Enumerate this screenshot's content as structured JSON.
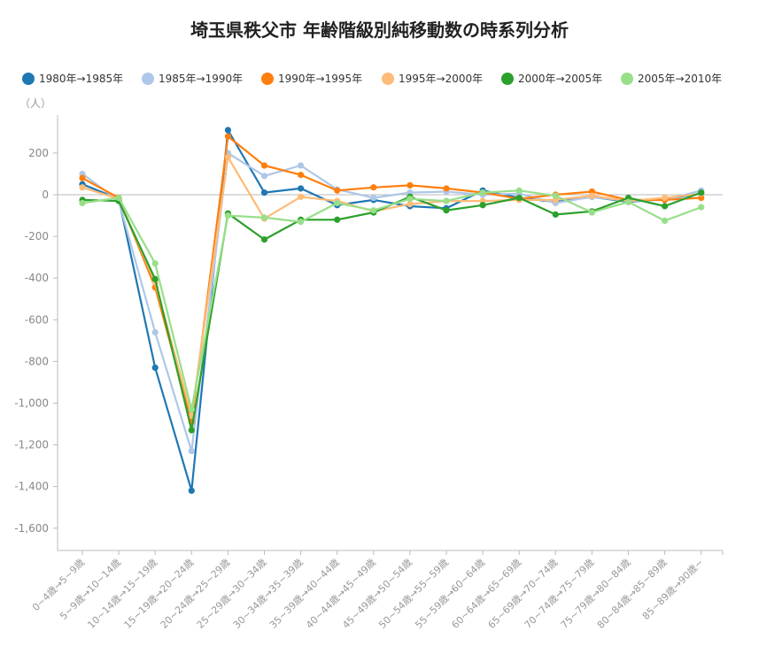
{
  "chart_data": {
    "type": "line",
    "title": "埼玉県秩父市 年齢階級別純移動数の時系列分析",
    "ylabel": "（人）",
    "ylim": [
      -1700,
      400
    ],
    "yticks": [
      200,
      0,
      -200,
      -400,
      -600,
      -800,
      -1000,
      -1200,
      -1400,
      -1600
    ],
    "ytick_labels": [
      "200",
      "0",
      "-200",
      "-400",
      "-600",
      "-800",
      "-1,000",
      "-1,200",
      "-1,400",
      "-1,600"
    ],
    "legend_position": "top",
    "grid": false,
    "categories": [
      "0~4歳→5~9歳",
      "5~9歳→10~14歳",
      "10~14歳→15~19歳",
      "15~19歳→20~24歳",
      "20~24歳→25~29歳",
      "25~29歳→30~34歳",
      "30~34歳→35~39歳",
      "35~39歳→40~44歳",
      "40~44歳→45~49歳",
      "45~49歳→50~54歳",
      "50~54歳→55~59歳",
      "55~59歳→60~64歳",
      "60~64歳→65~69歳",
      "65~69歳→70~74歳",
      "70~74歳→75~79歳",
      "75~79歳→80~84歳",
      "80~84歳→85~89歳",
      "85~89歳→90歳~"
    ],
    "series": [
      {
        "name": "1980年→1985年",
        "color": "#1f77b4",
        "values": [
          50,
          -20,
          -830,
          -1420,
          310,
          10,
          30,
          -50,
          -25,
          -55,
          -65,
          20,
          -15,
          -35,
          -10,
          -35,
          -20,
          5
        ]
      },
      {
        "name": "1985年→1990年",
        "color": "#aec7e8",
        "values": [
          100,
          -30,
          -660,
          -1230,
          200,
          90,
          140,
          25,
          -15,
          10,
          15,
          0,
          5,
          -40,
          -10,
          -30,
          -25,
          20
        ]
      },
      {
        "name": "1990年→1995年",
        "color": "#ff7f0e",
        "values": [
          80,
          -15,
          -445,
          -1090,
          280,
          140,
          95,
          20,
          35,
          45,
          30,
          10,
          -20,
          0,
          15,
          -25,
          -25,
          -15
        ]
      },
      {
        "name": "1995年→2000年",
        "color": "#ffbb78",
        "values": [
          35,
          -20,
          -420,
          -1060,
          180,
          -115,
          -10,
          -30,
          -80,
          -45,
          -30,
          -30,
          -25,
          -25,
          -5,
          -30,
          -15,
          5
        ]
      },
      {
        "name": "2000年→2005年",
        "color": "#2ca02c",
        "values": [
          -25,
          -30,
          -405,
          -1130,
          -90,
          -215,
          -120,
          -120,
          -85,
          -10,
          -75,
          -50,
          -15,
          -95,
          -80,
          -15,
          -55,
          10
        ]
      },
      {
        "name": "2005年→2010年",
        "color": "#98df8a",
        "values": [
          -40,
          -15,
          -330,
          -1030,
          -100,
          -110,
          -130,
          -40,
          -75,
          -20,
          -30,
          10,
          20,
          -5,
          -85,
          -35,
          -125,
          -60
        ]
      }
    ]
  }
}
